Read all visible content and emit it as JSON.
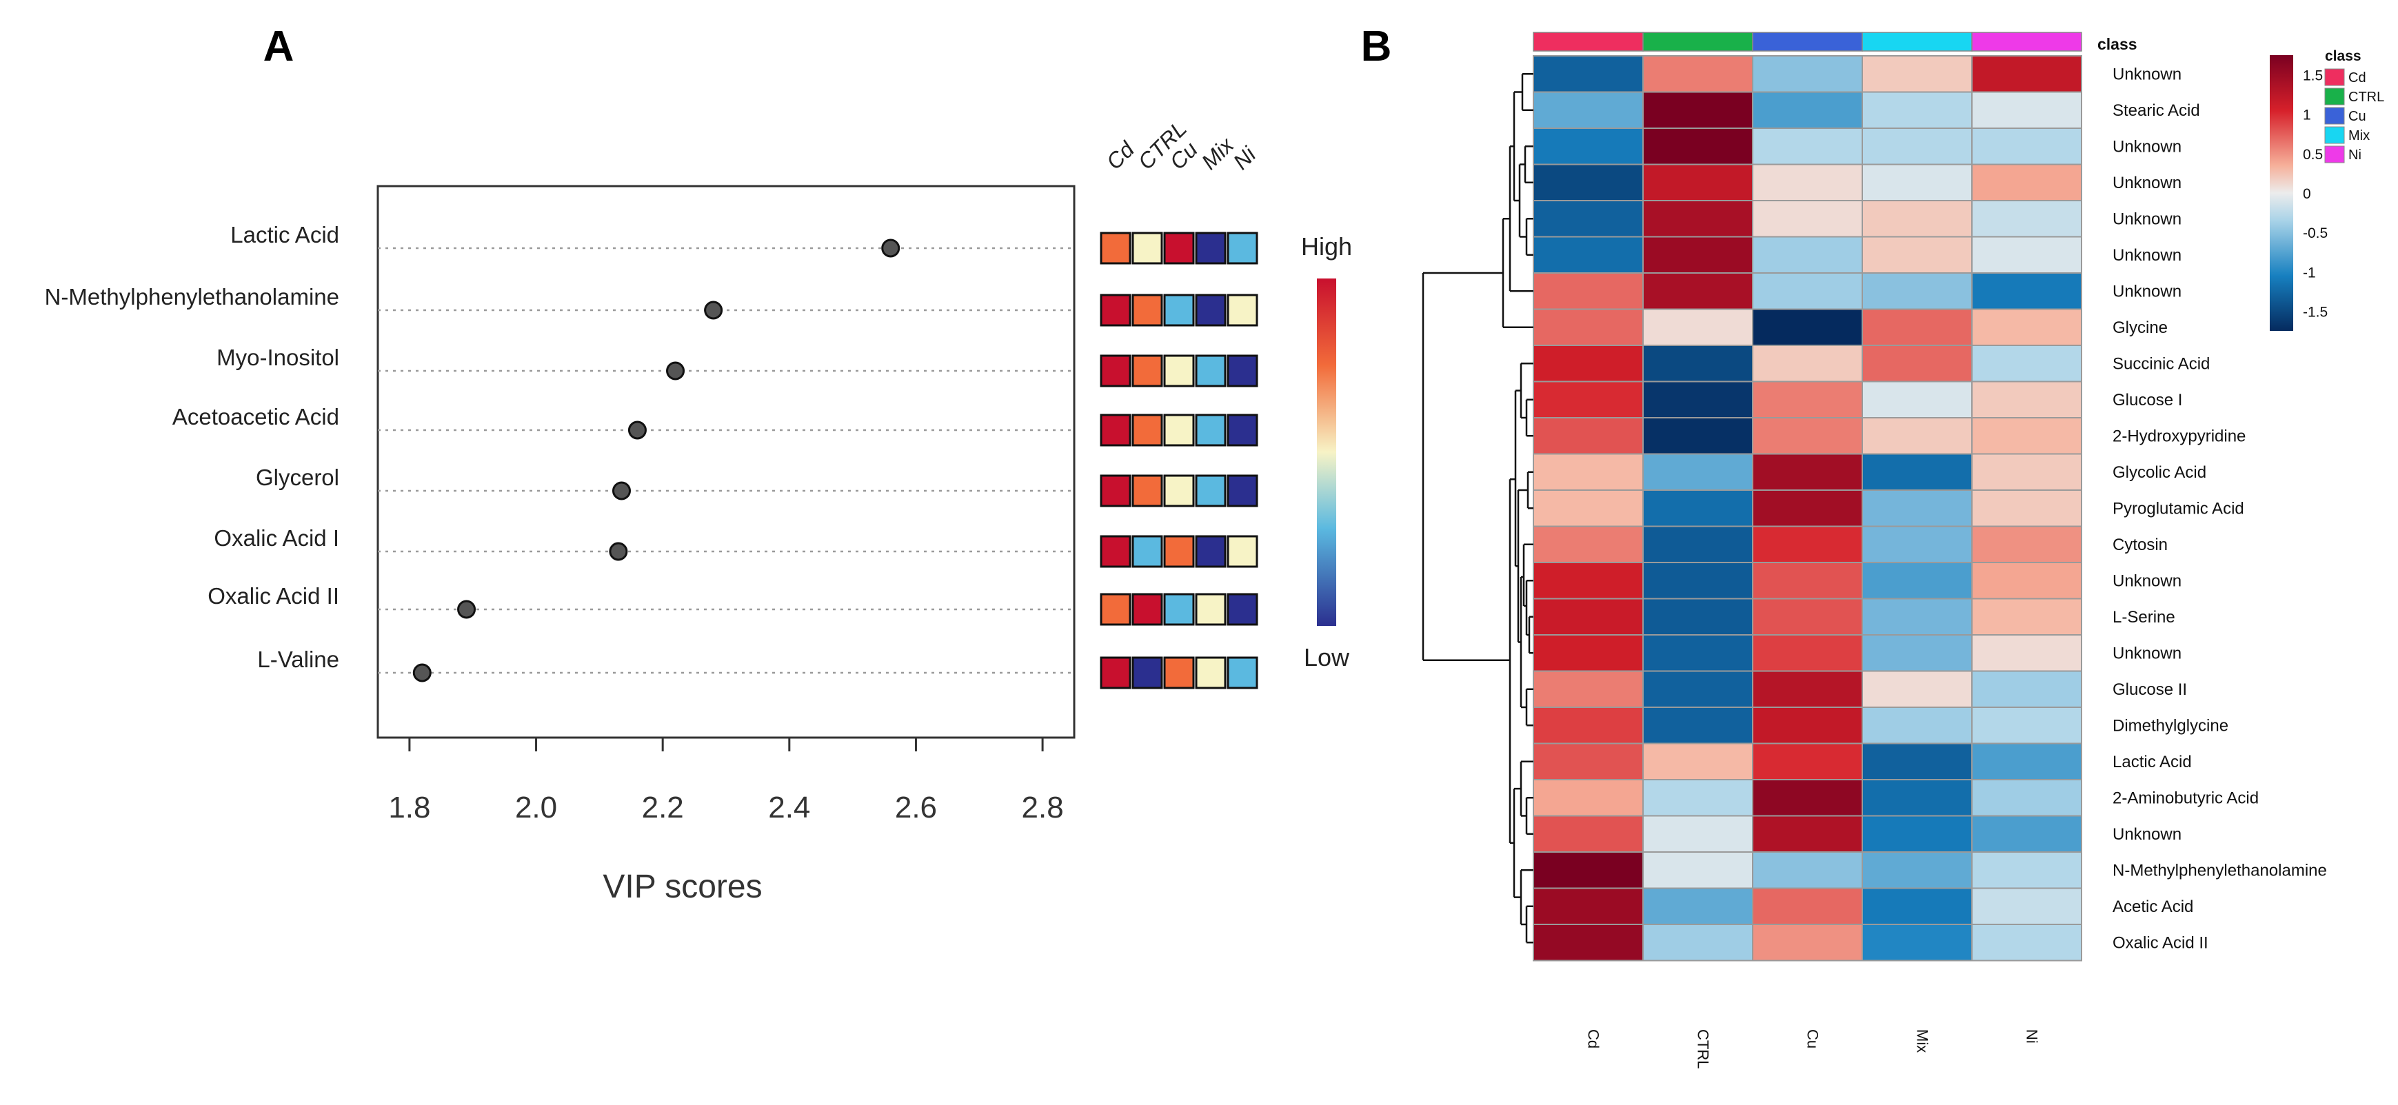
{
  "chart_data": [
    {
      "type": "scatter",
      "panel_label": "A",
      "title": "",
      "xlabel": "VIP scores",
      "ylabel": "",
      "xlim": [
        1.75,
        2.85
      ],
      "xticks": [
        "1.8",
        "2.0",
        "2.2",
        "2.4",
        "2.6",
        "2.8"
      ],
      "grid": false,
      "features": [
        "Lactic Acid",
        "N-Methylphenylethanolamine",
        "Myo-Inositol",
        "Acetoacetic Acid",
        "Glycerol",
        "Oxalic Acid I",
        "Oxalic Acid II",
        "L-Valine"
      ],
      "values": [
        2.56,
        2.28,
        2.22,
        2.16,
        2.135,
        2.13,
        1.89,
        1.82
      ],
      "groups": [
        "Cd",
        "CTRL",
        "Cu",
        "Mix",
        "Ni"
      ],
      "levels": [
        [
          4,
          3,
          5,
          1,
          2
        ],
        [
          5,
          4,
          2,
          1,
          3
        ],
        [
          5,
          4,
          3,
          2,
          1
        ],
        [
          5,
          4,
          3,
          2,
          1
        ],
        [
          5,
          4,
          3,
          2,
          1
        ],
        [
          5,
          2,
          4,
          1,
          3
        ],
        [
          4,
          5,
          2,
          3,
          1
        ],
        [
          5,
          1,
          4,
          3,
          2
        ]
      ],
      "legend": {
        "high_label": "High",
        "low_label": "Low"
      }
    },
    {
      "type": "heatmap",
      "panel_label": "B",
      "columns": [
        "Cd",
        "CTRL",
        "Cu",
        "Mix",
        "Ni"
      ],
      "rows": [
        "Unknown",
        "Stearic Acid",
        "Unknown",
        "Unknown",
        "Unknown",
        "Unknown",
        "Unknown",
        "Glycine",
        "Succinic Acid",
        "Glucose I",
        "2-Hydroxypyridine",
        "Glycolic Acid",
        "Pyroglutamic Acid",
        "Cytosin",
        "Unknown",
        "L-Serine",
        "Unknown",
        "Glucose II",
        "Dimethylglycine",
        "Lactic Acid",
        "2-Aminobutyric Acid",
        "Unknown",
        "N-Methylphenylethanolamine",
        "Acetic Acid",
        "Oxalic Acid II"
      ],
      "values": [
        [
          -1.3,
          0.6,
          -0.5,
          0.2,
          1.2
        ],
        [
          -0.7,
          1.75,
          -0.8,
          -0.3,
          -0.1
        ],
        [
          -1.1,
          1.75,
          -0.3,
          -0.3,
          -0.3
        ],
        [
          -1.5,
          1.2,
          0.1,
          -0.1,
          0.4
        ],
        [
          -1.3,
          1.4,
          0.1,
          0.2,
          -0.2
        ],
        [
          -1.2,
          1.5,
          -0.4,
          0.2,
          -0.1
        ],
        [
          0.7,
          1.4,
          -0.4,
          -0.5,
          -1.1
        ],
        [
          0.7,
          0.1,
          -1.75,
          0.7,
          0.3
        ],
        [
          1.1,
          -1.5,
          0.2,
          0.7,
          -0.3
        ],
        [
          1.0,
          -1.65,
          0.6,
          -0.1,
          0.2
        ],
        [
          0.8,
          -1.7,
          0.6,
          0.2,
          0.3
        ],
        [
          0.3,
          -0.7,
          1.45,
          -1.2,
          0.2
        ],
        [
          0.3,
          -1.2,
          1.45,
          -0.6,
          0.2
        ],
        [
          0.6,
          -1.35,
          1.0,
          -0.6,
          0.5
        ],
        [
          1.1,
          -1.35,
          0.8,
          -0.8,
          0.4
        ],
        [
          1.15,
          -1.35,
          0.8,
          -0.6,
          0.3
        ],
        [
          1.1,
          -1.3,
          0.9,
          -0.6,
          0.1
        ],
        [
          0.6,
          -1.3,
          1.3,
          0.1,
          -0.4
        ],
        [
          0.9,
          -1.3,
          1.2,
          -0.4,
          -0.3
        ],
        [
          0.8,
          0.3,
          1.0,
          -1.3,
          -0.8
        ],
        [
          0.4,
          -0.3,
          1.6,
          -1.2,
          -0.4
        ],
        [
          0.8,
          -0.1,
          1.35,
          -1.1,
          -0.8
        ],
        [
          1.8,
          -0.1,
          -0.5,
          -0.7,
          -0.3
        ],
        [
          1.5,
          -0.7,
          0.7,
          -1.1,
          -0.2
        ],
        [
          1.55,
          -0.4,
          0.5,
          -1.0,
          -0.3
        ]
      ],
      "class_label": "class",
      "class_colors": {
        "Cd": "#ee2e5f",
        "CTRL": "#19b14a",
        "Cu": "#3a62d8",
        "Mix": "#18d6f2",
        "Ni": "#ee3ae8"
      },
      "colorbar": {
        "ticks": [
          1.5,
          1,
          0.5,
          0,
          -0.5,
          -1,
          -1.5
        ],
        "tick_labels": [
          "1.5",
          "1",
          "0.5",
          "0",
          "-0.5",
          "-1",
          "-1.5"
        ],
        "range": [
          -1.75,
          1.75
        ]
      },
      "legend": {
        "title": "class",
        "entries": [
          "Cd",
          "CTRL",
          "Cu",
          "Mix",
          "Ni"
        ]
      }
    }
  ]
}
